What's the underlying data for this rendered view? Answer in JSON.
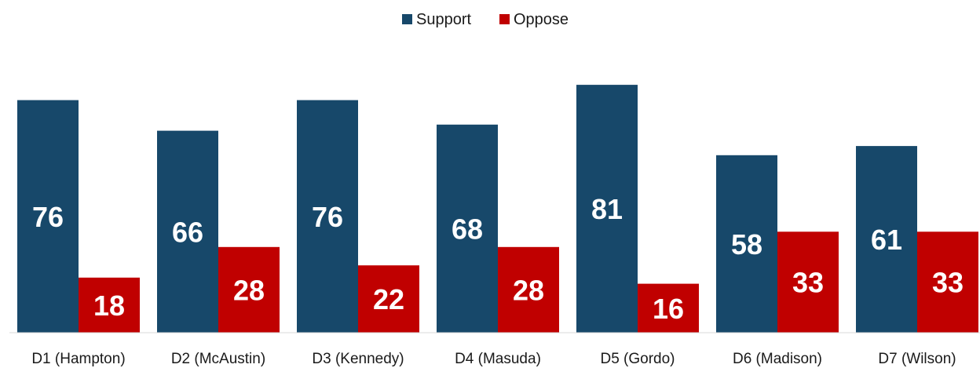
{
  "chart_data": {
    "type": "bar",
    "title": "",
    "xlabel": "",
    "ylabel": "",
    "ylim": [
      0,
      85
    ],
    "grid": false,
    "legend_position": "top-center",
    "categories": [
      "D1 (Hampton)",
      "D2 (McAustin)",
      "D3 (Kennedy)",
      "D4 (Masuda)",
      "D5 (Gordo)",
      "D6 (Madison)",
      "D7 (Wilson)"
    ],
    "series": [
      {
        "name": "Support",
        "color": "#17486a",
        "values": [
          76,
          66,
          76,
          68,
          81,
          58,
          61
        ]
      },
      {
        "name": "Oppose",
        "color": "#c00000",
        "values": [
          18,
          28,
          22,
          28,
          16,
          33,
          33
        ]
      }
    ]
  }
}
